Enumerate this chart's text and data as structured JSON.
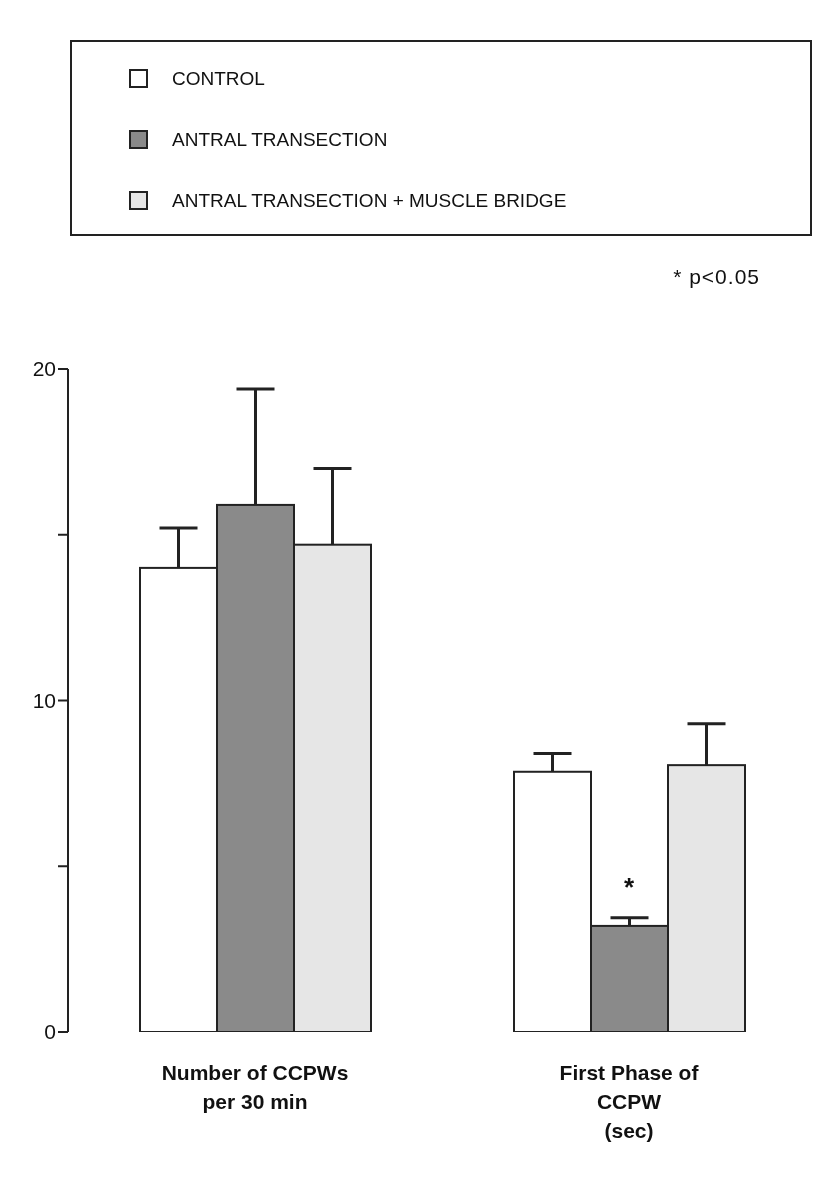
{
  "chart_data": {
    "type": "bar",
    "categories": [
      "Number of CCPWs\nper 30 min",
      "First Phase of\nCCPW\n(sec)"
    ],
    "series": [
      {
        "name": "CONTROL",
        "color": "#ffffff",
        "values": [
          14.0,
          7.85
        ],
        "errors": [
          [
            14.0,
            15.2
          ],
          [
            7.85,
            8.4
          ]
        ]
      },
      {
        "name": "ANTRAL TRANSECTION",
        "color": "#8a8a8a",
        "values": [
          15.9,
          3.2
        ],
        "errors": [
          [
            15.9,
            19.4
          ],
          [
            3.2,
            3.45
          ]
        ]
      },
      {
        "name": "ANTRAL TRANSECTION + MUSCLE BRIDGE",
        "color": "#e6e6e6",
        "values": [
          14.7,
          8.05
        ],
        "errors": [
          [
            14.7,
            17.0
          ],
          [
            8.05,
            9.3
          ]
        ]
      }
    ],
    "ylim": [
      0,
      20
    ],
    "yticks": [
      0,
      {
        "value": 5,
        "label": null
      },
      10,
      {
        "value": 15,
        "label": null
      },
      20
    ],
    "grid": false,
    "legend": "top",
    "annotations": [
      "* p<0.05",
      {
        "text": "*",
        "x": "First Phase of\nCCPW\n(sec)",
        "y": 3.45
      }
    ]
  }
}
